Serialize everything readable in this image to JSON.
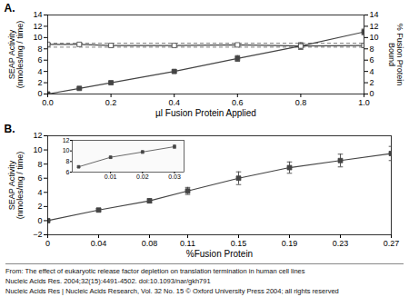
{
  "chart_data": [
    {
      "type": "line",
      "title": "A.",
      "xlabel": "µl Fusion Protein Applied",
      "ylabel": "SEAP Activity\n(nmoles/mg / time)",
      "y2label": "% Fusion Protein\nBound",
      "x": [
        0,
        0.1,
        0.2,
        0.4,
        0.6,
        0.8,
        1.0
      ],
      "series": [
        {
          "color": "#444444",
          "marker": "square",
          "values": [
            0,
            1.0,
            2.0,
            4.0,
            6.3,
            8.5,
            11.0
          ],
          "errors": [
            0,
            0.15,
            0.2,
            0.25,
            0.5,
            0.6,
            0.5
          ]
        },
        {
          "color": "#444444",
          "marker": "open_square",
          "values": [
            8.8,
            8.8,
            8.6,
            8.6,
            8.7,
            8.5,
            8.6
          ],
          "errors": [
            0.2,
            0.3,
            0.3,
            0.25,
            0.3,
            0.3,
            0.3
          ]
        }
      ],
      "reference_lines": {
        "values": [
          9.0,
          8.3
        ],
        "line_style": "dashed",
        "color": "#444444"
      },
      "xlim": [
        0,
        1.0
      ],
      "xticks": [
        {
          "value": 0,
          "label": "0.0"
        },
        0.2,
        0.4,
        0.6,
        0.8,
        {
          "value": 1.0,
          "label": "1.0"
        }
      ],
      "ylim": [
        0,
        14
      ],
      "yticks": [
        0,
        2,
        4,
        6,
        8,
        10,
        12,
        14
      ],
      "y2lim": [
        0,
        14
      ],
      "y2ticks": [
        0,
        2,
        4,
        6,
        8,
        10,
        12,
        14
      ],
      "grid": false
    },
    {
      "type": "line",
      "title": "B.",
      "xlabel": "%Fusion Protein",
      "ylabel": "SEAP Activity\n(nmoles/mg / time)",
      "x": [
        0,
        0.04,
        0.08,
        0.11,
        0.15,
        0.19,
        0.23,
        0.27
      ],
      "series": [
        {
          "color": "#444444",
          "marker": "square",
          "values": [
            0,
            1.5,
            2.8,
            4.2,
            6.0,
            7.5,
            8.5,
            9.5
          ],
          "errors": [
            0.1,
            0.2,
            0.3,
            0.5,
            0.9,
            0.8,
            0.9,
            1.0
          ]
        }
      ],
      "xlim": [
        0,
        0.27
      ],
      "xticks": [
        0,
        0.04,
        0.08,
        0.11,
        0.15,
        0.19,
        0.23,
        0.27
      ],
      "ylim": [
        -2,
        12
      ],
      "yticks": [
        -2,
        0,
        2,
        4,
        6,
        8,
        10,
        12
      ],
      "grid": false,
      "inset": {
        "type": "line",
        "x": [
          0.0,
          0.01,
          0.02,
          0.03
        ],
        "series": [
          {
            "color": "#444444",
            "marker": "square",
            "values": [
              7.0,
              8.8,
              9.8,
              10.8
            ],
            "errors": [
              0.15,
              0.2,
              0.25,
              0.35
            ]
          }
        ],
        "xlim": [
          -0.002,
          0.033
        ],
        "xticks": [
          0.01,
          0.02,
          0.03
        ],
        "ylim": [
          6,
          12
        ],
        "yticks": [
          6,
          8,
          10,
          12
        ],
        "grid": false
      }
    }
  ],
  "caption": [
    "From: The effect of eukaryotic release factor depletion on translation termination in human cell lines",
    "Nucleic Acids Res. 2004;32(15):4491-4502. doi:10.1093/nar/gkh791",
    "Nucleic Acids Res | Nucleic Acids Research, Vol. 32 No. 15 © Oxford University Press 2004; all rights reserved"
  ]
}
